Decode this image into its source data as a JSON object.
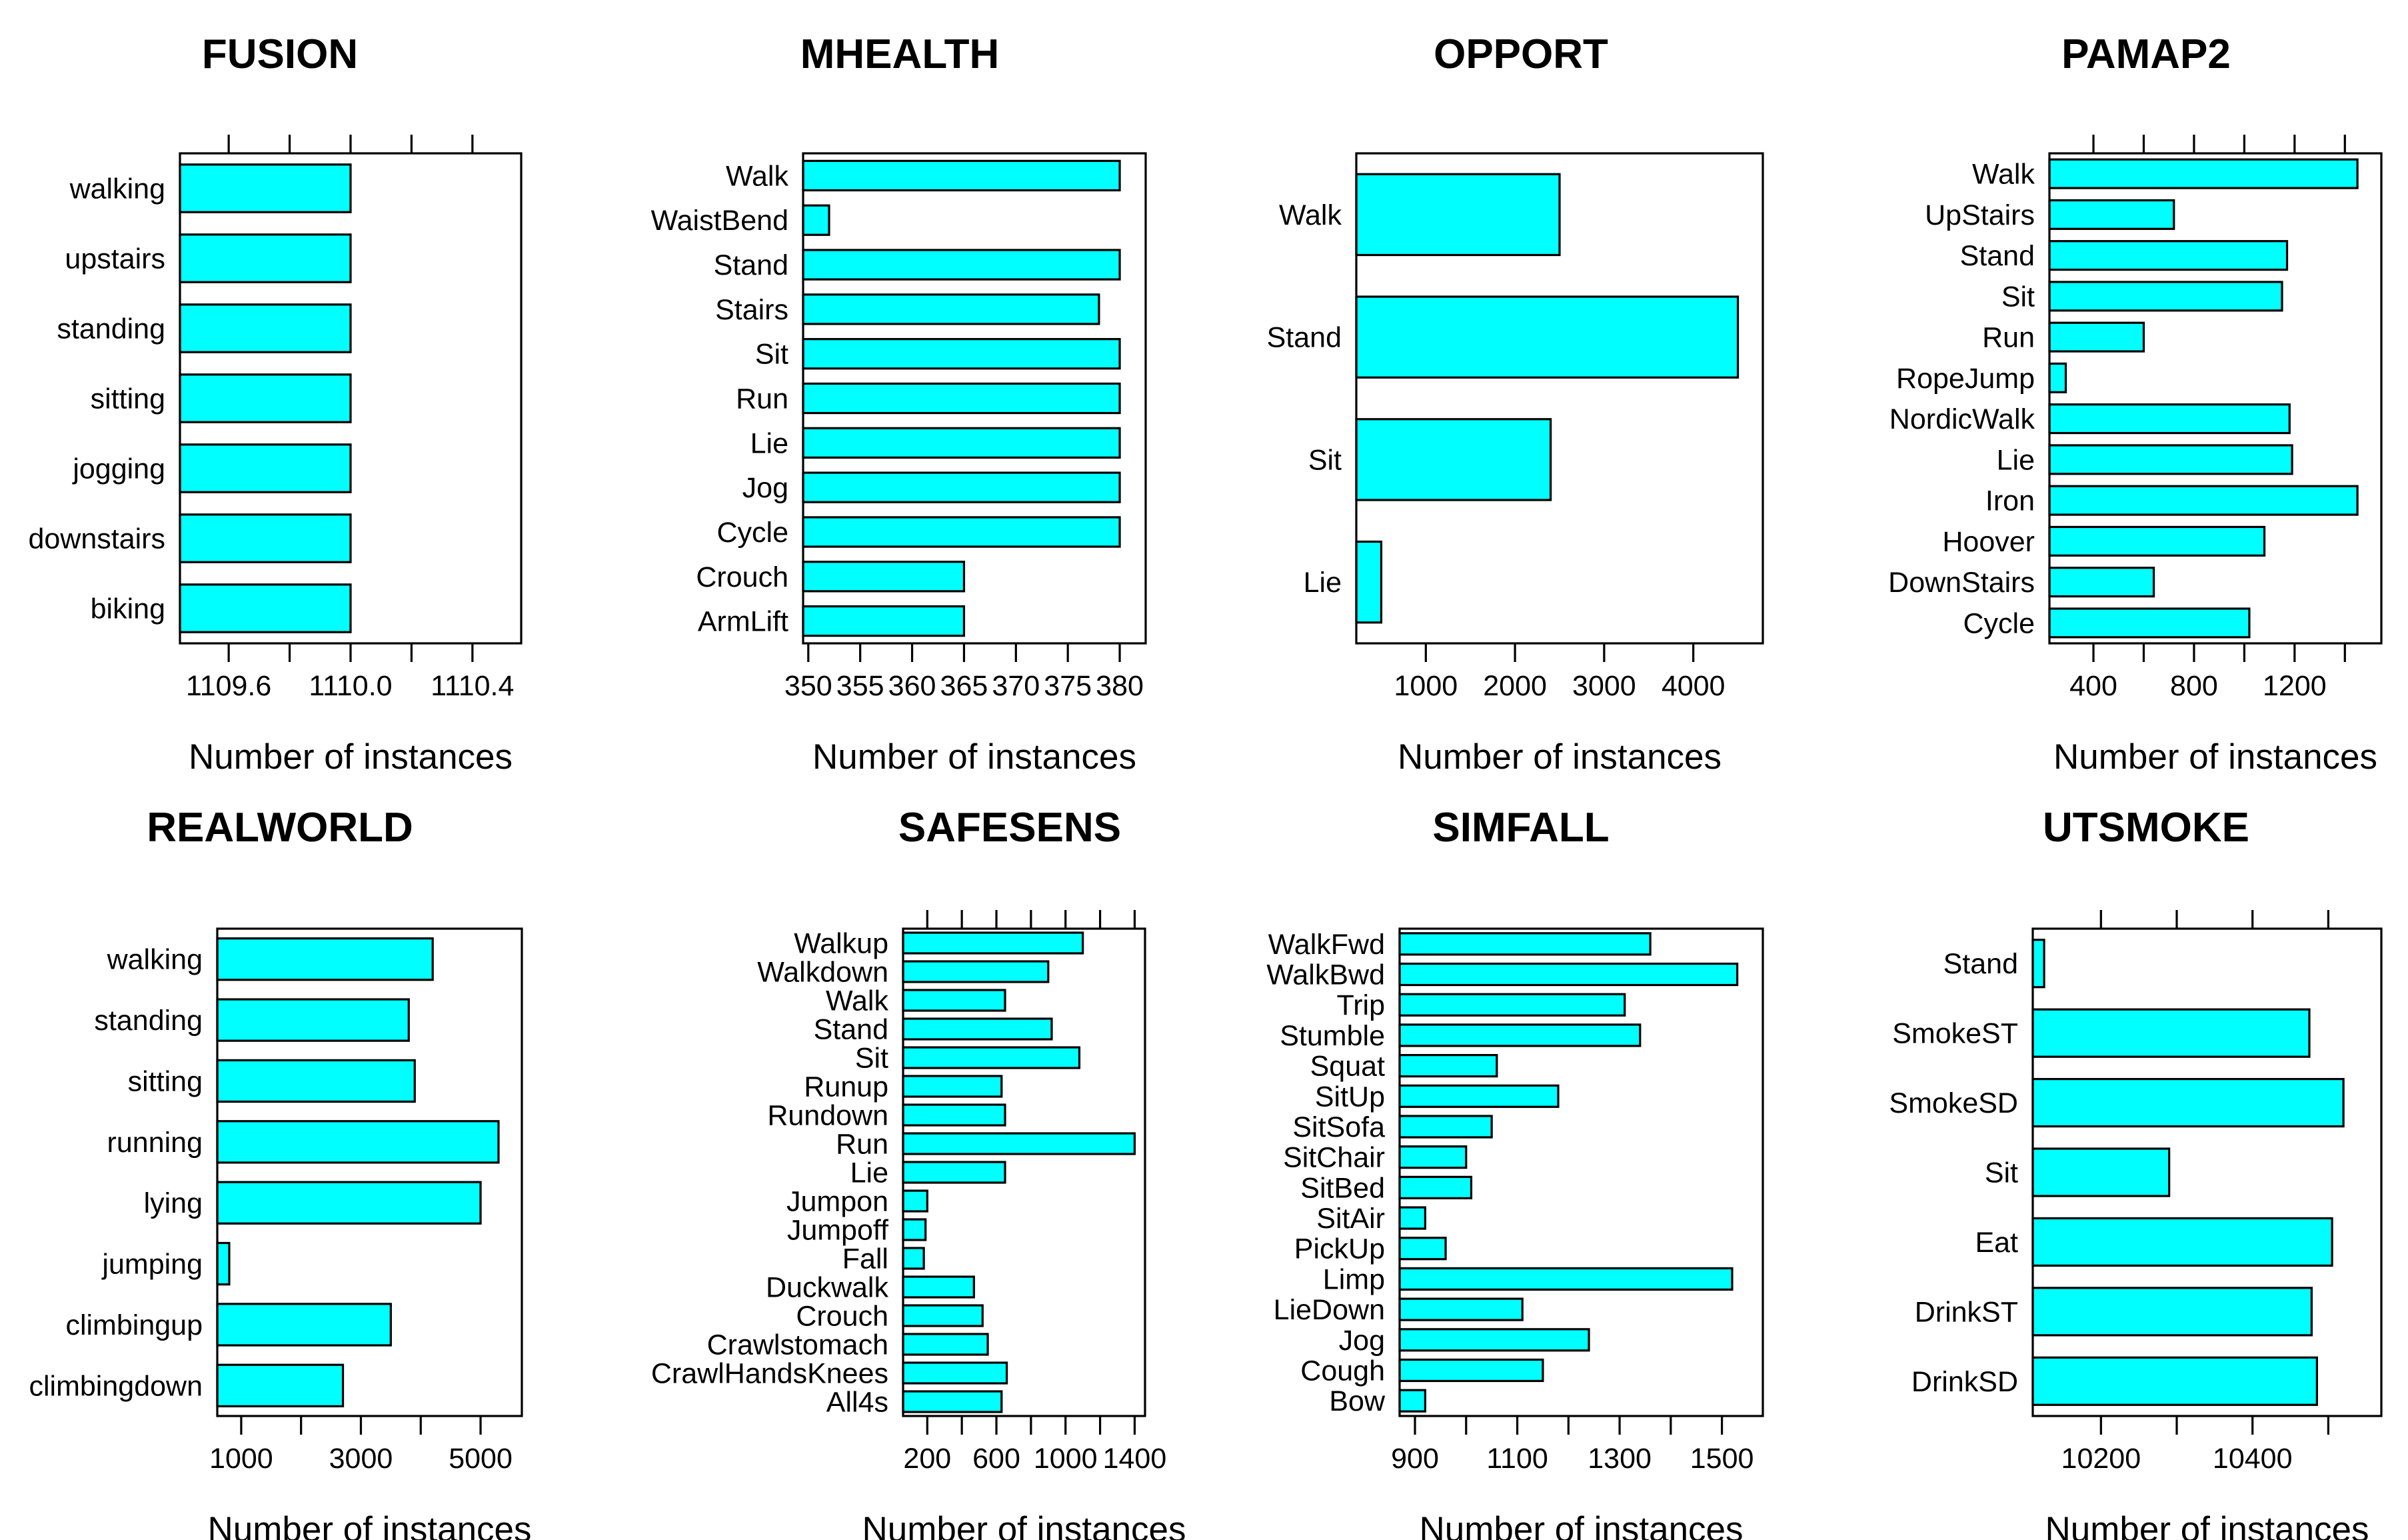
{
  "figure": {
    "bar_fill": "#00FFFF",
    "bar_stroke": "#000000",
    "background": "#FFFFFF"
  },
  "chart_data": [
    {
      "type": "bar",
      "orientation": "horizontal",
      "title": "FUSION",
      "xlabel": "Number of instances",
      "categories": [
        "walking",
        "upstairs",
        "standing",
        "sitting",
        "jogging",
        "downstairs",
        "biking"
      ],
      "values": [
        1110,
        1110,
        1110,
        1110,
        1110,
        1110,
        1110
      ],
      "xlim": [
        1109.44,
        1110.56
      ],
      "xticks": [
        1109.6,
        1110.0,
        1110.4
      ],
      "xtick_labels": [
        "1109.6",
        "1110.0",
        "1110.4"
      ],
      "minor_ticks": [
        1109.8,
        1110.2
      ],
      "top_ticks": true,
      "base": 1109.44
    },
    {
      "type": "bar",
      "orientation": "horizontal",
      "title": "MHEALTH",
      "xlabel": "Number of instances",
      "categories": [
        "Walk",
        "WaistBend",
        "Stand",
        "Stairs",
        "Sit",
        "Run",
        "Lie",
        "Jog",
        "Cycle",
        "Crouch",
        "ArmLift"
      ],
      "values": [
        380,
        352,
        380,
        378,
        380,
        380,
        380,
        380,
        380,
        365,
        365
      ],
      "xlim": [
        349.5,
        382.5
      ],
      "xticks": [
        350,
        355,
        360,
        365,
        370,
        375,
        380
      ],
      "xtick_labels": [
        "350",
        "355",
        "360",
        "365",
        "370",
        "375",
        "380"
      ],
      "minor_ticks": [],
      "top_ticks": false,
      "base": 349.5
    },
    {
      "type": "bar",
      "orientation": "horizontal",
      "title": "OPPORT",
      "xlabel": "Number of instances",
      "categories": [
        "Walk",
        "Stand",
        "Sit",
        "Lie"
      ],
      "values": [
        2500,
        4500,
        2400,
        500
      ],
      "xlim": [
        220,
        4780
      ],
      "xticks": [
        1000,
        2000,
        3000,
        4000
      ],
      "xtick_labels": [
        "1000",
        "2000",
        "3000",
        "4000"
      ],
      "minor_ticks": [],
      "top_ticks": false,
      "base": 220
    },
    {
      "type": "bar",
      "orientation": "horizontal",
      "title": "PAMAP2",
      "xlabel": "Number of instances",
      "categories": [
        "Walk",
        "UpStairs",
        "Stand",
        "Sit",
        "Run",
        "RopeJump",
        "NordicWalk",
        "Lie",
        "Iron",
        "Hoover",
        "DownStairs",
        "Cycle"
      ],
      "values": [
        1450,
        720,
        1170,
        1150,
        600,
        290,
        1180,
        1190,
        1450,
        1080,
        640,
        1020
      ],
      "xlim": [
        225,
        1545
      ],
      "xticks": [
        400,
        800,
        1200
      ],
      "xtick_labels": [
        "400",
        "800",
        "1200"
      ],
      "minor_ticks": [
        600,
        1000,
        1400
      ],
      "top_ticks": true,
      "base": 225
    },
    {
      "type": "bar",
      "orientation": "horizontal",
      "title": "REALWORLD",
      "xlabel": "Number of instances",
      "categories": [
        "walking",
        "standing",
        "sitting",
        "running",
        "lying",
        "jumping",
        "climbingup",
        "climbingdown"
      ],
      "values": [
        4200,
        3800,
        3900,
        5300,
        5000,
        800,
        3500,
        2700
      ],
      "xlim": [
        600,
        5690
      ],
      "xticks": [
        1000,
        3000,
        5000
      ],
      "xtick_labels": [
        "1000",
        "3000",
        "5000"
      ],
      "minor_ticks": [
        2000,
        4000
      ],
      "top_ticks": false,
      "base": 600
    },
    {
      "type": "bar",
      "orientation": "horizontal",
      "title": "SAFESENS",
      "xlabel": "Number of instances",
      "categories": [
        "Walkup",
        "Walkdown",
        "Walk",
        "Stand",
        "Sit",
        "Runup",
        "Rundown",
        "Run",
        "Lie",
        "Jumpon",
        "Jumpoff",
        "Fall",
        "Duckwalk",
        "Crouch",
        "Crawlstomach",
        "CrawlHandsKnees",
        "All4s"
      ],
      "values": [
        1100,
        900,
        650,
        920,
        1080,
        630,
        650,
        1400,
        650,
        200,
        190,
        180,
        470,
        520,
        550,
        660,
        630
      ],
      "xlim": [
        60,
        1460
      ],
      "xticks": [
        200,
        600,
        1000,
        1400
      ],
      "xtick_labels": [
        "200",
        "600",
        "1000",
        "1400"
      ],
      "minor_ticks": [
        400,
        800,
        1200
      ],
      "top_ticks": true,
      "base": 60
    },
    {
      "type": "bar",
      "orientation": "horizontal",
      "title": "SIMFALL",
      "xlabel": "Number of instances",
      "categories": [
        "WalkFwd",
        "WalkBwd",
        "Trip",
        "Stumble",
        "Squat",
        "SitUp",
        "SitSofa",
        "SitChair",
        "SitBed",
        "SitAir",
        "PickUp",
        "Limp",
        "LieDown",
        "Jog",
        "Cough",
        "Bow"
      ],
      "values": [
        1360,
        1530,
        1310,
        1340,
        1060,
        1180,
        1050,
        1000,
        1010,
        920,
        960,
        1520,
        1110,
        1240,
        1150,
        920
      ],
      "xlim": [
        870,
        1580
      ],
      "xticks": [
        900,
        1100,
        1300,
        1500
      ],
      "xtick_labels": [
        "900",
        "1100",
        "1300",
        "1500"
      ],
      "minor_ticks": [
        1000,
        1200,
        1400
      ],
      "top_ticks": false,
      "base": 870
    },
    {
      "type": "bar",
      "orientation": "horizontal",
      "title": "UTSMOKE",
      "xlabel": "Number of instances",
      "categories": [
        "Stand",
        "SmokeST",
        "SmokeSD",
        "Sit",
        "Eat",
        "DrinkST",
        "DrinkSD"
      ],
      "values": [
        10125,
        10475,
        10520,
        10290,
        10505,
        10478,
        10485
      ],
      "xlim": [
        10110,
        10570
      ],
      "xticks": [
        10200,
        10400
      ],
      "xtick_labels": [
        "10200",
        "10400"
      ],
      "minor_ticks": [
        10300,
        10500
      ],
      "top_ticks": true,
      "base": 10110
    }
  ]
}
